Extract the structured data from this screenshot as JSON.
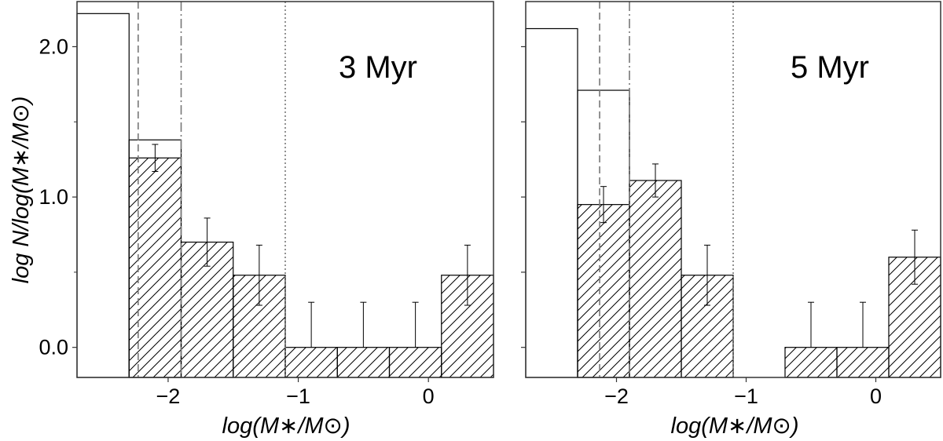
{
  "ylabel": "log N/log(M∗/M⊙)",
  "chart_data": [
    {
      "type": "bar",
      "title": "3 Myr",
      "xlabel": "log(M∗/M⊙)",
      "ylabel": "log N/log(M∗/M⊙)",
      "xlim": [
        -2.7,
        0.5
      ],
      "ylim": [
        -0.2,
        2.3
      ],
      "xticks": [
        -2,
        -1,
        0
      ],
      "xtick_labels": [
        "−2",
        "−1",
        "0"
      ],
      "yticks": [
        0.0,
        1.0,
        2.0
      ],
      "ytick_labels": [
        "0.0",
        "1.0",
        "2.0"
      ],
      "minor_yticks": [
        0.5,
        1.5
      ],
      "outline_series": {
        "name": "",
        "bins": [
          [
            -2.7,
            -2.3
          ],
          [
            -2.3,
            -1.9
          ]
        ],
        "values": [
          2.22,
          1.38
        ]
      },
      "hatched_series": {
        "name": "",
        "bins": [
          [
            -2.3,
            -1.9
          ],
          [
            -1.9,
            -1.5
          ],
          [
            -1.5,
            -1.1
          ],
          [
            -1.1,
            -0.7
          ],
          [
            -0.7,
            -0.3
          ],
          [
            -0.3,
            0.1
          ],
          [
            0.1,
            0.5
          ]
        ],
        "values": [
          1.26,
          0.7,
          0.48,
          0.0,
          0.0,
          0.0,
          0.48
        ],
        "err_low": [
          0.09,
          0.16,
          0.2,
          0.0,
          0.0,
          0.0,
          0.2
        ],
        "err_high": [
          0.09,
          0.16,
          0.2,
          0.3,
          0.3,
          0.3,
          0.2
        ]
      },
      "vlines": [
        {
          "x": -2.23,
          "style": "dashed"
        },
        {
          "x": -1.9,
          "style": "dashdot"
        },
        {
          "x": -1.1,
          "style": "dotted"
        }
      ]
    },
    {
      "type": "bar",
      "title": "5 Myr",
      "xlabel": "log(M∗/M⊙)",
      "ylabel": "",
      "xlim": [
        -2.7,
        0.5
      ],
      "ylim": [
        -0.2,
        2.3
      ],
      "xticks": [
        -2,
        -1,
        0
      ],
      "xtick_labels": [
        "−2",
        "−1",
        "0"
      ],
      "yticks": [
        0.0,
        0.5,
        1.0,
        1.5,
        2.0
      ],
      "ytick_labels": [],
      "minor_yticks": [],
      "outline_series": {
        "name": "",
        "bins": [
          [
            -2.7,
            -2.3
          ],
          [
            -2.3,
            -1.9
          ]
        ],
        "values": [
          2.12,
          1.71
        ]
      },
      "hatched_series": {
        "name": "",
        "bins": [
          [
            -2.3,
            -1.9
          ],
          [
            -1.9,
            -1.5
          ],
          [
            -1.5,
            -1.1
          ],
          [
            -0.7,
            -0.3
          ],
          [
            -0.3,
            0.1
          ],
          [
            0.1,
            0.5
          ]
        ],
        "values": [
          0.95,
          1.11,
          0.48,
          0.0,
          0.0,
          0.6
        ],
        "err_low": [
          0.12,
          0.11,
          0.2,
          0.0,
          0.0,
          0.18
        ],
        "err_high": [
          0.12,
          0.11,
          0.2,
          0.3,
          0.3,
          0.18
        ]
      },
      "vlines": [
        {
          "x": -2.13,
          "style": "dashed"
        },
        {
          "x": -1.9,
          "style": "dashdot"
        },
        {
          "x": -1.1,
          "style": "dotted"
        }
      ]
    }
  ]
}
